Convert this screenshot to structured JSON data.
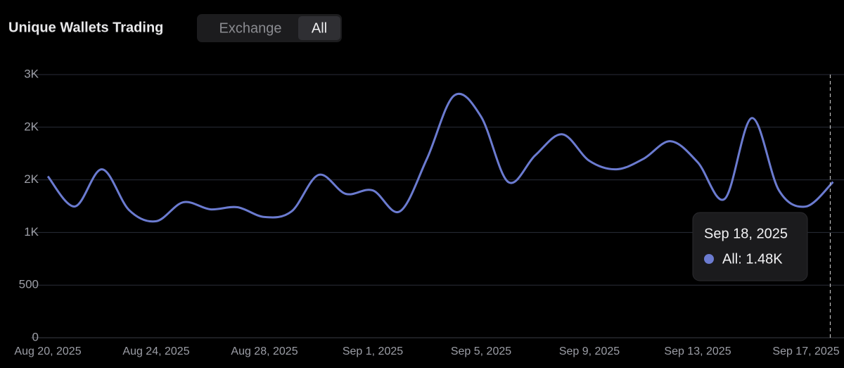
{
  "chart_data": {
    "type": "line",
    "title": "Unique Wallets Trading",
    "controls": {
      "options": [
        "Exchange",
        "All"
      ],
      "selected_index": 1
    },
    "categories": [
      "Aug 20, 2025",
      "Aug 21, 2025",
      "Aug 22, 2025",
      "Aug 23, 2025",
      "Aug 24, 2025",
      "Aug 25, 2025",
      "Aug 26, 2025",
      "Aug 27, 2025",
      "Aug 28, 2025",
      "Aug 29, 2025",
      "Aug 30, 2025",
      "Aug 31, 2025",
      "Sep 1, 2025",
      "Sep 2, 2025",
      "Sep 3, 2025",
      "Sep 4, 2025",
      "Sep 5, 2025",
      "Sep 6, 2025",
      "Sep 7, 2025",
      "Sep 8, 2025",
      "Sep 9, 2025",
      "Sep 10, 2025",
      "Sep 11, 2025",
      "Sep 12, 2025",
      "Sep 13, 2025",
      "Sep 14, 2025",
      "Sep 15, 2025",
      "Sep 16, 2025",
      "Sep 17, 2025",
      "Sep 18, 2025"
    ],
    "xtick_every": 4,
    "series": [
      {
        "name": "All",
        "color": "#6b7bd0",
        "values": [
          1533,
          1247,
          1600,
          1213,
          1107,
          1287,
          1220,
          1240,
          1147,
          1200,
          1547,
          1367,
          1400,
          1200,
          1700,
          2300,
          2100,
          1480,
          1733,
          1933,
          1680,
          1600,
          1700,
          1867,
          1667,
          1320,
          2087,
          1400,
          1247,
          1480
        ]
      }
    ],
    "ylim": [
      0,
      2500
    ],
    "yticks": [
      0,
      500,
      {
        "value": 1000,
        "label": "1K"
      },
      {
        "value": 1500,
        "label": "2K"
      },
      {
        "value": 2000,
        "label": "2K"
      },
      {
        "value": 2500,
        "label": "3K"
      }
    ],
    "grid": true,
    "tooltip": {
      "index": 29,
      "date": "Sep 18, 2025",
      "text": "All: 1.48K"
    }
  }
}
